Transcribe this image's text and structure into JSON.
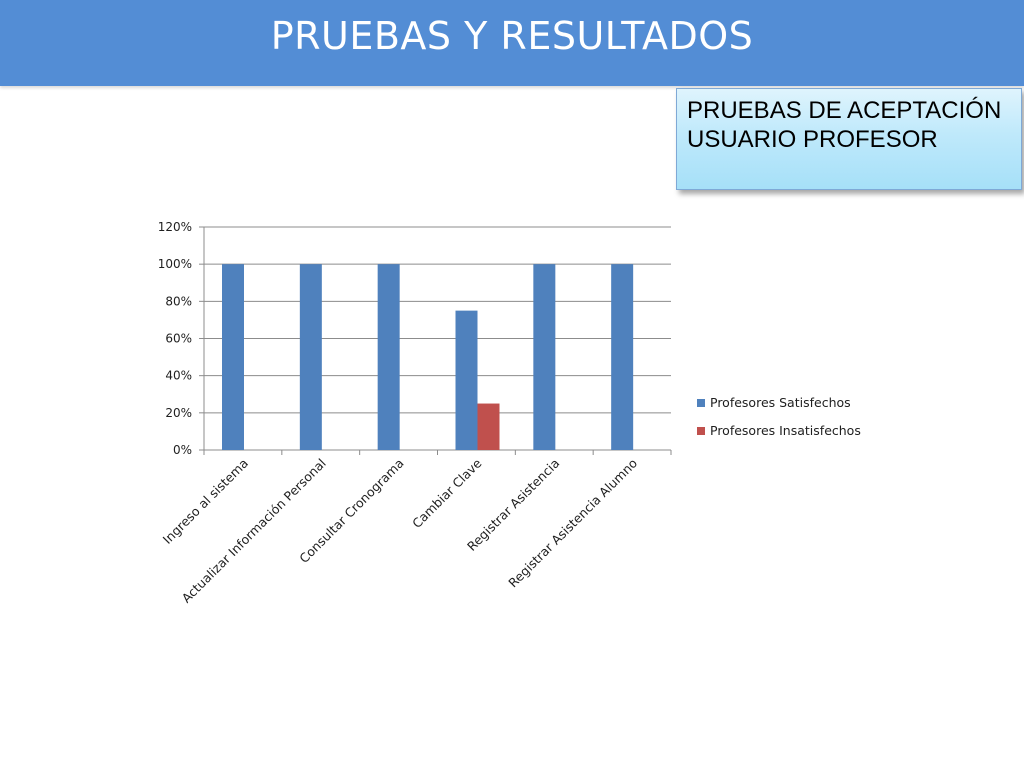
{
  "header": {
    "title": "PRUEBAS Y RESULTADOS"
  },
  "callout": {
    "text": "PRUEBAS DE ACEPTACIÓN USUARIO PROFESOR"
  },
  "colors": {
    "header_bg": "#538dd5",
    "series_satisfechos": "#4f81bd",
    "series_insatisfechos": "#c0504d"
  },
  "chart_data": {
    "type": "bar",
    "categories": [
      "Ingreso al sistema",
      "Actualizar Información Personal",
      "Consultar Cronograma",
      "Cambiar Clave",
      "Registrar Asistencia",
      "Registrar Asistencia Alumno"
    ],
    "series": [
      {
        "name": "Profesores Satisfechos",
        "values": [
          100,
          100,
          100,
          75,
          100,
          100
        ],
        "color": "#4f81bd"
      },
      {
        "name": "Profesores Insatisfechos",
        "values": [
          0,
          0,
          0,
          25,
          0,
          0
        ],
        "color": "#c0504d"
      }
    ],
    "yticks": [
      "0%",
      "20%",
      "40%",
      "60%",
      "80%",
      "100%",
      "120%"
    ],
    "ylim": [
      0,
      120
    ],
    "grid": true,
    "legend": "right"
  }
}
